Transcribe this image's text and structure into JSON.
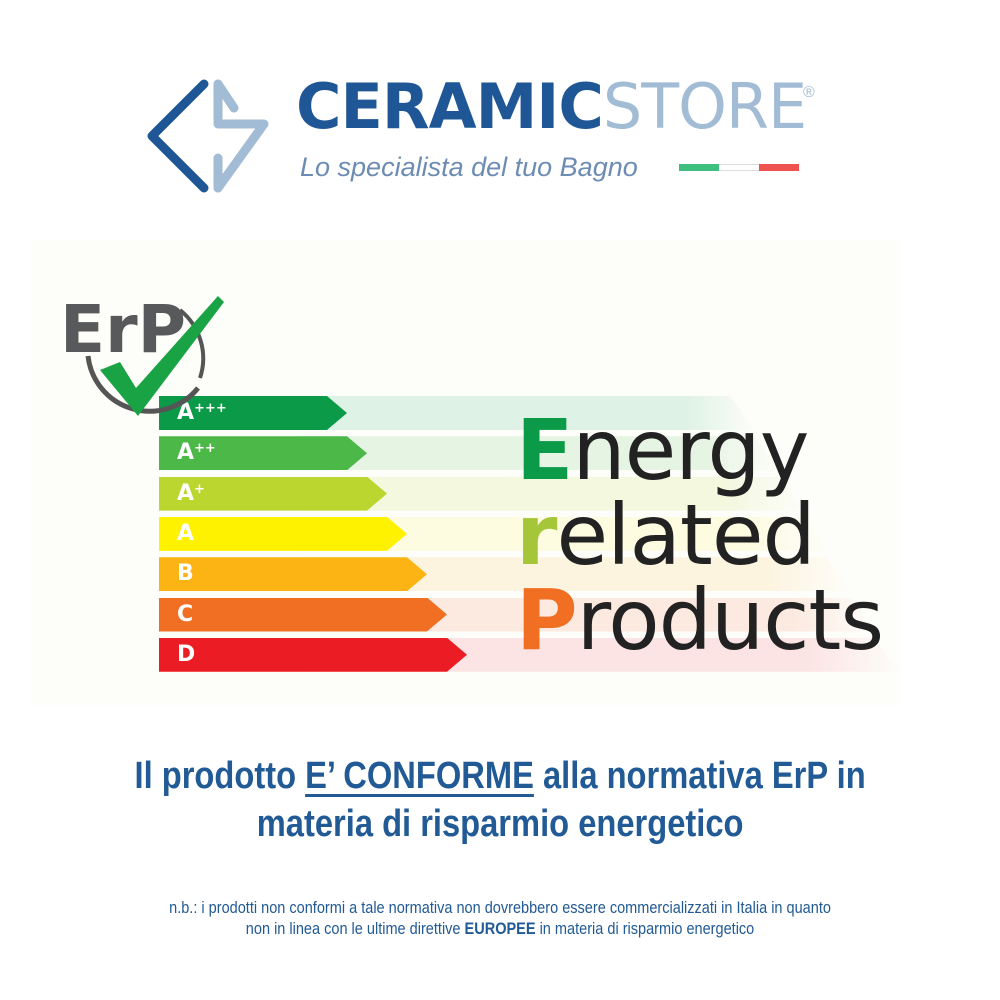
{
  "logo": {
    "brand_primary": "CERAMIC",
    "brand_secondary": "STORE",
    "registered": "®",
    "tagline": "Lo specialista del tuo Bagno",
    "colors": {
      "primary": "#1f5796",
      "secondary": "#a3bcd6"
    },
    "flag_colors": [
      "#3fbf7f",
      "#ffffff",
      "#ef5350"
    ]
  },
  "erp": {
    "badge_text": "ErP",
    "badge_icon": "checkmark-icon",
    "classes": [
      {
        "main": "A",
        "sup": "+++",
        "color": "#0a9a48",
        "band": "#dff2e6"
      },
      {
        "main": "A",
        "sup": "++",
        "color": "#4cb848",
        "band": "#e6f4e3"
      },
      {
        "main": "A",
        "sup": "+",
        "color": "#bcd630",
        "band": "#f3f8df"
      },
      {
        "main": "A",
        "sup": "",
        "color": "#fff200",
        "band": "#fdfbe0"
      },
      {
        "main": "B",
        "sup": "",
        "color": "#fcb415",
        "band": "#fdf4e0"
      },
      {
        "main": "C",
        "sup": "",
        "color": "#f06f22",
        "band": "#fce9df"
      },
      {
        "main": "D",
        "sup": "",
        "color": "#ec1c24",
        "band": "#fce4e4"
      }
    ],
    "words": [
      {
        "initial": "E",
        "rest": "nergy",
        "color": "#0a9a48"
      },
      {
        "initial": "r",
        "rest": "elated",
        "color": "#a6c63a"
      },
      {
        "initial": "P",
        "rest": "roducts",
        "color": "#f06f22"
      }
    ]
  },
  "headline": {
    "before": "Il prodotto ",
    "emphasis": "E’ CONFORME",
    "after_line1": " alla normativa ErP in",
    "line2": "materia di risparmio energetico"
  },
  "note": {
    "line1": "n.b.: i prodotti non conformi a tale normativa non dovrebbero essere commercializzati in Italia in quanto",
    "line2_before": "non in linea con le ultime direttive ",
    "line2_bold": "EUROPEE",
    "line2_after": " in materia di risparmio energetico"
  }
}
